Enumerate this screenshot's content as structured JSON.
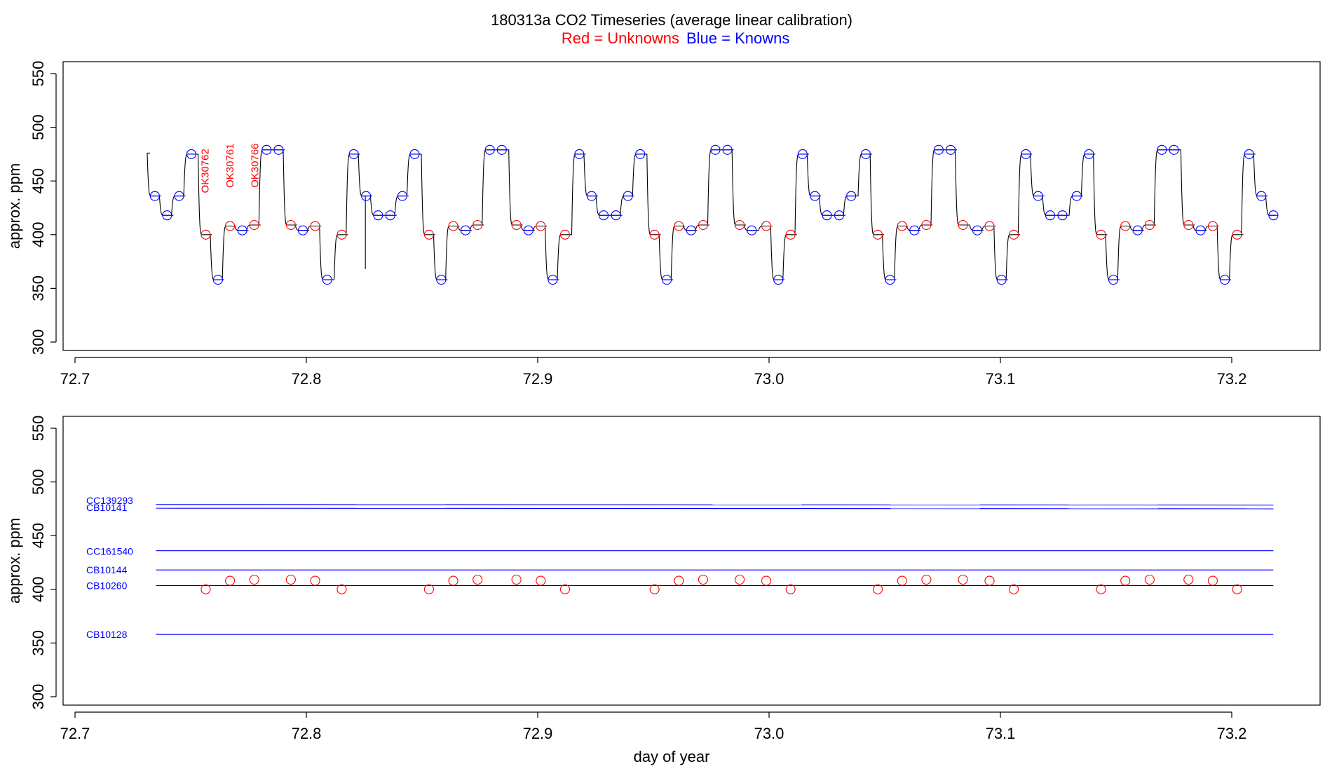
{
  "title": {
    "main": "180313a   CO2 Timeseries (average linear calibration)",
    "legend_red": "Red = Unknowns",
    "legend_blue": "Blue = Knowns"
  },
  "colors": {
    "unknowns": "#ff0000",
    "knowns": "#0000ff",
    "trace": "#000000"
  },
  "chart_data": [
    {
      "type": "line",
      "panel": "top",
      "xlabel": "",
      "ylabel": "approx. ppm",
      "xlim": [
        72.695,
        73.24
      ],
      "ylim": [
        290,
        560
      ],
      "x_ticks": [
        "72.7",
        "72.8",
        "72.9",
        "73.0",
        "73.1",
        "73.2"
      ],
      "y_ticks": [
        "300",
        "350",
        "400",
        "450",
        "500",
        "550"
      ],
      "series_trace_note": "black line = continuous CO2 signal; blue circles = knowns, red circles = unknowns",
      "sample_labels": [
        {
          "text": "OK30762",
          "x": 72.7565,
          "y": 440
        },
        {
          "text": "OK30761",
          "x": 72.7673,
          "y": 445
        },
        {
          "text": "OK30766",
          "x": 72.778,
          "y": 445
        }
      ],
      "points": [
        {
          "x": 72.7345,
          "y": 436,
          "c": "b"
        },
        {
          "x": 72.7398,
          "y": 418,
          "c": "b"
        },
        {
          "x": 72.745,
          "y": 436,
          "c": "b"
        },
        {
          "x": 72.7503,
          "y": 475,
          "c": "b"
        },
        {
          "x": 72.7565,
          "y": 400,
          "c": "r"
        },
        {
          "x": 72.7618,
          "y": 358,
          "c": "b"
        },
        {
          "x": 72.767,
          "y": 408,
          "c": "r"
        },
        {
          "x": 72.7723,
          "y": 404,
          "c": "b"
        },
        {
          "x": 72.7775,
          "y": 409,
          "c": "r"
        },
        {
          "x": 72.7828,
          "y": 479,
          "c": "b"
        },
        {
          "x": 72.788,
          "y": 479,
          "c": "b"
        },
        {
          "x": 72.7933,
          "y": 409,
          "c": "r"
        },
        {
          "x": 72.7985,
          "y": 404,
          "c": "b"
        },
        {
          "x": 72.8038,
          "y": 408,
          "c": "r"
        },
        {
          "x": 72.809,
          "y": 358,
          "c": "b"
        },
        {
          "x": 72.8153,
          "y": 400,
          "c": "r"
        },
        {
          "x": 72.8205,
          "y": 475,
          "c": "b"
        },
        {
          "x": 72.8258,
          "y": 436,
          "c": "b"
        },
        {
          "x": 72.831,
          "y": 418,
          "c": "b"
        },
        {
          "x": 72.8363,
          "y": 418,
          "c": "b"
        },
        {
          "x": 72.8415,
          "y": 436,
          "c": "b"
        },
        {
          "x": 72.8468,
          "y": 475,
          "c": "b"
        },
        {
          "x": 72.853,
          "y": 400,
          "c": "r"
        },
        {
          "x": 72.8583,
          "y": 358,
          "c": "b"
        },
        {
          "x": 72.8635,
          "y": 408,
          "c": "r"
        },
        {
          "x": 72.8688,
          "y": 404,
          "c": "b"
        },
        {
          "x": 72.874,
          "y": 409,
          "c": "r"
        },
        {
          "x": 72.8793,
          "y": 479,
          "c": "b"
        },
        {
          "x": 72.8845,
          "y": 479,
          "c": "b"
        },
        {
          "x": 72.8908,
          "y": 409,
          "c": "r"
        },
        {
          "x": 72.896,
          "y": 404,
          "c": "b"
        },
        {
          "x": 72.9013,
          "y": 408,
          "c": "r"
        },
        {
          "x": 72.9065,
          "y": 358,
          "c": "b"
        },
        {
          "x": 72.9118,
          "y": 400,
          "c": "r"
        },
        {
          "x": 72.918,
          "y": 475,
          "c": "b"
        },
        {
          "x": 72.9233,
          "y": 436,
          "c": "b"
        },
        {
          "x": 72.9285,
          "y": 418,
          "c": "b"
        },
        {
          "x": 72.9338,
          "y": 418,
          "c": "b"
        },
        {
          "x": 72.939,
          "y": 436,
          "c": "b"
        },
        {
          "x": 72.9443,
          "y": 475,
          "c": "b"
        },
        {
          "x": 72.9505,
          "y": 400,
          "c": "r"
        },
        {
          "x": 72.9558,
          "y": 358,
          "c": "b"
        },
        {
          "x": 72.961,
          "y": 408,
          "c": "r"
        },
        {
          "x": 72.9663,
          "y": 404,
          "c": "b"
        },
        {
          "x": 72.9715,
          "y": 409,
          "c": "r"
        },
        {
          "x": 72.9768,
          "y": 479,
          "c": "b"
        },
        {
          "x": 72.982,
          "y": 479,
          "c": "b"
        },
        {
          "x": 72.9873,
          "y": 409,
          "c": "r"
        },
        {
          "x": 72.9925,
          "y": 404,
          "c": "b"
        },
        {
          "x": 72.9988,
          "y": 408,
          "c": "r"
        },
        {
          "x": 73.004,
          "y": 358,
          "c": "b"
        },
        {
          "x": 73.0093,
          "y": 400,
          "c": "r"
        },
        {
          "x": 73.0145,
          "y": 475,
          "c": "b"
        },
        {
          "x": 73.0198,
          "y": 436,
          "c": "b"
        },
        {
          "x": 73.025,
          "y": 418,
          "c": "b"
        },
        {
          "x": 73.0303,
          "y": 418,
          "c": "b"
        },
        {
          "x": 73.0355,
          "y": 436,
          "c": "b"
        },
        {
          "x": 73.0418,
          "y": 475,
          "c": "b"
        },
        {
          "x": 73.047,
          "y": 400,
          "c": "r"
        },
        {
          "x": 73.0523,
          "y": 358,
          "c": "b"
        },
        {
          "x": 73.0575,
          "y": 408,
          "c": "r"
        },
        {
          "x": 73.0628,
          "y": 404,
          "c": "b"
        },
        {
          "x": 73.068,
          "y": 409,
          "c": "r"
        },
        {
          "x": 73.0733,
          "y": 479,
          "c": "b"
        },
        {
          "x": 73.0785,
          "y": 479,
          "c": "b"
        },
        {
          "x": 73.0838,
          "y": 409,
          "c": "r"
        },
        {
          "x": 73.09,
          "y": 404,
          "c": "b"
        },
        {
          "x": 73.0953,
          "y": 408,
          "c": "r"
        },
        {
          "x": 73.1005,
          "y": 358,
          "c": "b"
        },
        {
          "x": 73.1058,
          "y": 400,
          "c": "r"
        },
        {
          "x": 73.111,
          "y": 475,
          "c": "b"
        },
        {
          "x": 73.1163,
          "y": 436,
          "c": "b"
        },
        {
          "x": 73.1215,
          "y": 418,
          "c": "b"
        },
        {
          "x": 73.1268,
          "y": 418,
          "c": "b"
        },
        {
          "x": 73.133,
          "y": 436,
          "c": "b"
        },
        {
          "x": 73.1383,
          "y": 475,
          "c": "b"
        },
        {
          "x": 73.1435,
          "y": 400,
          "c": "r"
        },
        {
          "x": 73.1488,
          "y": 358,
          "c": "b"
        },
        {
          "x": 73.154,
          "y": 408,
          "c": "r"
        },
        {
          "x": 73.1593,
          "y": 404,
          "c": "b"
        },
        {
          "x": 73.1645,
          "y": 409,
          "c": "r"
        },
        {
          "x": 73.1698,
          "y": 479,
          "c": "b"
        },
        {
          "x": 73.175,
          "y": 479,
          "c": "b"
        },
        {
          "x": 73.1813,
          "y": 409,
          "c": "r"
        },
        {
          "x": 73.1865,
          "y": 404,
          "c": "b"
        },
        {
          "x": 73.1918,
          "y": 408,
          "c": "r"
        },
        {
          "x": 73.197,
          "y": 358,
          "c": "b"
        },
        {
          "x": 73.2023,
          "y": 400,
          "c": "r"
        },
        {
          "x": 73.2075,
          "y": 475,
          "c": "b"
        },
        {
          "x": 73.2128,
          "y": 436,
          "c": "b"
        },
        {
          "x": 73.218,
          "y": 418,
          "c": "b"
        }
      ]
    },
    {
      "type": "scatter",
      "panel": "bottom",
      "xlabel": "day of year",
      "ylabel": "approx. ppm",
      "xlim": [
        72.695,
        73.24
      ],
      "ylim": [
        290,
        560
      ],
      "x_ticks": [
        "72.7",
        "72.8",
        "72.9",
        "73.0",
        "73.1",
        "73.2"
      ],
      "y_ticks": [
        "300",
        "350",
        "400",
        "450",
        "500",
        "550"
      ],
      "reference_lines": [
        {
          "name": "CC139293",
          "y_start": 479,
          "y_end": 478.5
        },
        {
          "name": "CB10141",
          "y_start": 475.5,
          "y_end": 475
        },
        {
          "name": "CC161540",
          "y_start": 436,
          "y_end": 436
        },
        {
          "name": "CB10144",
          "y_start": 418,
          "y_end": 418
        },
        {
          "name": "CB10260",
          "y_start": 403.5,
          "y_end": 403.5
        },
        {
          "name": "CB10128",
          "y_start": 358,
          "y_end": 358
        }
      ],
      "reference_lines_x": [
        72.735,
        73.218
      ],
      "unknowns": [
        {
          "x": 72.7565,
          "y": 400
        },
        {
          "x": 72.767,
          "y": 408
        },
        {
          "x": 72.7775,
          "y": 409
        },
        {
          "x": 72.7933,
          "y": 409
        },
        {
          "x": 72.8038,
          "y": 408
        },
        {
          "x": 72.8153,
          "y": 400
        },
        {
          "x": 72.853,
          "y": 400
        },
        {
          "x": 72.8635,
          "y": 408
        },
        {
          "x": 72.874,
          "y": 409
        },
        {
          "x": 72.8908,
          "y": 409
        },
        {
          "x": 72.9013,
          "y": 408
        },
        {
          "x": 72.9118,
          "y": 400
        },
        {
          "x": 72.9505,
          "y": 400
        },
        {
          "x": 72.961,
          "y": 408
        },
        {
          "x": 72.9715,
          "y": 409
        },
        {
          "x": 72.9873,
          "y": 409
        },
        {
          "x": 72.9988,
          "y": 408
        },
        {
          "x": 73.0093,
          "y": 400
        },
        {
          "x": 73.047,
          "y": 400
        },
        {
          "x": 73.0575,
          "y": 408
        },
        {
          "x": 73.068,
          "y": 409
        },
        {
          "x": 73.0838,
          "y": 409
        },
        {
          "x": 73.0953,
          "y": 408
        },
        {
          "x": 73.1058,
          "y": 400
        },
        {
          "x": 73.1435,
          "y": 400
        },
        {
          "x": 73.154,
          "y": 408
        },
        {
          "x": 73.1645,
          "y": 409
        },
        {
          "x": 73.1813,
          "y": 409
        },
        {
          "x": 73.1918,
          "y": 408
        },
        {
          "x": 73.2023,
          "y": 400
        }
      ]
    }
  ]
}
